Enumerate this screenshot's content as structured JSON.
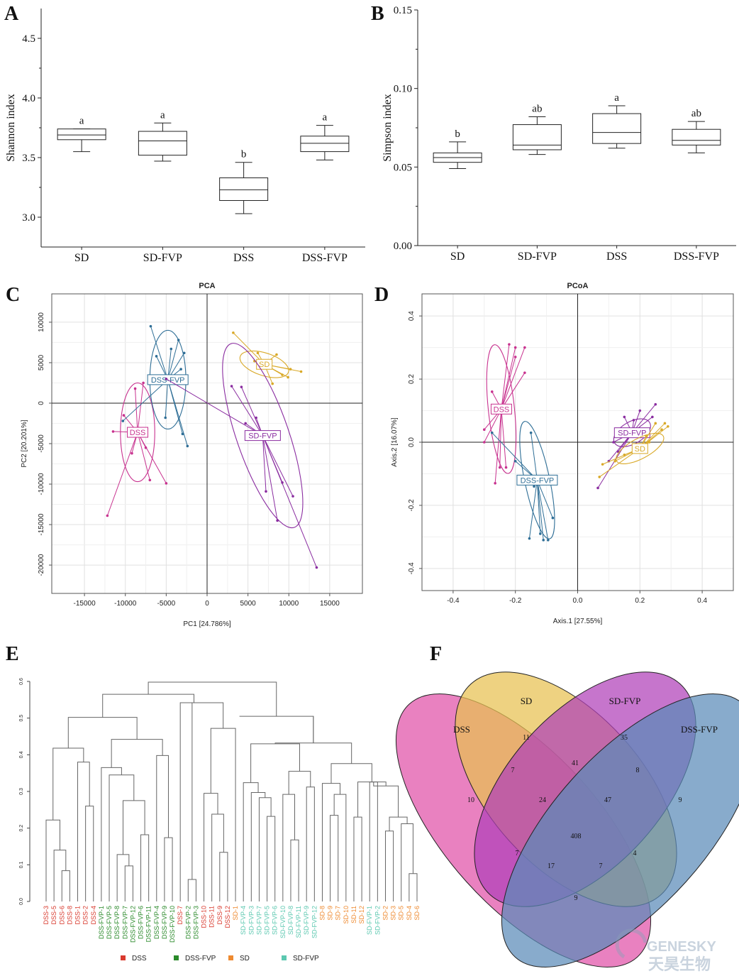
{
  "panels": {
    "A": "A",
    "B": "B",
    "C": "C",
    "D": "D",
    "E": "E",
    "F": "F"
  },
  "colors": {
    "DSS": "#c8328f",
    "DSS-FVP": "#2e6e96",
    "SD": "#d9a928",
    "SD-FVP": "#8a2ca0",
    "dendro_DSS": "#d93a2e",
    "dendro_DSS-FVP": "#2a8a2a",
    "dendro_SD": "#ee8a30",
    "dendro_SD-FVP": "#5cc8b0"
  },
  "chart_data": [
    {
      "id": "A",
      "type": "boxplot",
      "ylabel": "Shannon index",
      "ylim": [
        2.75,
        4.75
      ],
      "yticks": [
        "3.0",
        "3.5",
        "4.0",
        "4.5"
      ],
      "categories": [
        "SD",
        "SD-FVP",
        "DSS",
        "DSS-FVP"
      ],
      "boxes": [
        {
          "min": 3.55,
          "q1": 3.65,
          "median": 3.69,
          "q3": 3.74,
          "max": 3.74,
          "letter": "a"
        },
        {
          "min": 3.47,
          "q1": 3.52,
          "median": 3.64,
          "q3": 3.72,
          "max": 3.79,
          "letter": "a"
        },
        {
          "min": 3.03,
          "q1": 3.14,
          "median": 3.23,
          "q3": 3.33,
          "max": 3.46,
          "letter": "b"
        },
        {
          "min": 3.48,
          "q1": 3.55,
          "median": 3.62,
          "q3": 3.68,
          "max": 3.77,
          "letter": "a"
        }
      ]
    },
    {
      "id": "B",
      "type": "boxplot",
      "ylabel": "Simpson index",
      "ylim": [
        0.0,
        0.15
      ],
      "yticks": [
        "0.00",
        "0.05",
        "0.10",
        "0.15"
      ],
      "categories": [
        "SD",
        "SD-FVP",
        "DSS",
        "DSS-FVP"
      ],
      "boxes": [
        {
          "min": 0.049,
          "q1": 0.053,
          "median": 0.056,
          "q3": 0.059,
          "max": 0.066,
          "letter": "b"
        },
        {
          "min": 0.058,
          "q1": 0.061,
          "median": 0.064,
          "q3": 0.077,
          "max": 0.082,
          "letter": "ab"
        },
        {
          "min": 0.062,
          "q1": 0.065,
          "median": 0.072,
          "q3": 0.084,
          "max": 0.089,
          "letter": "a"
        },
        {
          "min": 0.059,
          "q1": 0.064,
          "median": 0.067,
          "q3": 0.074,
          "max": 0.079,
          "letter": "ab"
        }
      ]
    },
    {
      "id": "C",
      "type": "scatter",
      "title": "PCA",
      "xlabel": "PC1 [24.786%]",
      "ylabel": "PC2 [20.201%]",
      "xlim": [
        -19000,
        19000
      ],
      "ylim": [
        -23500,
        13500
      ],
      "xticks": [
        -15000,
        -10000,
        -5000,
        0,
        5000,
        10000,
        15000
      ],
      "yticks": [
        -20000,
        -15000,
        -10000,
        -5000,
        0,
        5000,
        10000
      ],
      "groups": [
        {
          "name": "DSS",
          "color": "#c8328f",
          "center": [
            -8500,
            -3600
          ],
          "ellipse": {
            "rx": 2100,
            "ry": 6100,
            "angle": 0
          },
          "points": [
            [
              -12200,
              -13900
            ],
            [
              -7000,
              -9500
            ],
            [
              -5000,
              -9900
            ],
            [
              -9500,
              -3500
            ],
            [
              -11500,
              -3500
            ],
            [
              -7500,
              -5500
            ],
            [
              -8800,
              1800
            ],
            [
              -10200,
              -1500
            ],
            [
              -7800,
              2500
            ],
            [
              -9200,
              -6200
            ]
          ]
        },
        {
          "name": "DSS-FVP",
          "color": "#2e6e96",
          "center": [
            -4800,
            2900
          ],
          "ellipse": {
            "rx": 2200,
            "ry": 6100,
            "angle": 0
          },
          "points": [
            [
              -6900,
              9500
            ],
            [
              -3500,
              7800
            ],
            [
              -2800,
              6200
            ],
            [
              -3200,
              4200
            ],
            [
              -3000,
              -3800
            ],
            [
              -2400,
              -5300
            ],
            [
              -5100,
              -1800
            ],
            [
              -10300,
              -2200
            ],
            [
              -6200,
              5800
            ],
            [
              -4400,
              6700
            ]
          ]
        },
        {
          "name": "SD",
          "color": "#d9a928",
          "center": [
            7000,
            4800
          ],
          "ellipse": {
            "rx": 3100,
            "ry": 1400,
            "angle": 18
          },
          "points": [
            [
              3200,
              8700
            ],
            [
              11500,
              3900
            ],
            [
              9900,
              3200
            ],
            [
              7500,
              4700
            ],
            [
              8500,
              6000
            ],
            [
              9200,
              3500
            ],
            [
              5800,
              5200
            ],
            [
              8000,
              2400
            ],
            [
              10200,
              4200
            ],
            [
              6200,
              6200
            ]
          ]
        },
        {
          "name": "SD-FVP",
          "color": "#8a2ca0",
          "center": [
            6800,
            -4000
          ],
          "ellipse": {
            "rx": 3200,
            "ry": 12000,
            "angle": -19
          },
          "points": [
            [
              13400,
              -20300
            ],
            [
              8600,
              -14500
            ],
            [
              10500,
              -11500
            ],
            [
              7200,
              -10900
            ],
            [
              -5000,
              3000
            ],
            [
              3000,
              2100
            ],
            [
              4200,
              2000
            ],
            [
              6000,
              -1800
            ],
            [
              4700,
              -2500
            ],
            [
              9200,
              -9800
            ]
          ]
        }
      ]
    },
    {
      "id": "D",
      "type": "scatter",
      "title": "PCoA",
      "xlabel": "Axis.1  [27.55%]",
      "ylabel": "Axis.2  [16.07%]",
      "xlim": [
        -0.5,
        0.5
      ],
      "ylim": [
        -0.47,
        0.47
      ],
      "xticks": [
        -0.4,
        -0.2,
        0.0,
        0.2,
        0.4
      ],
      "xtick_labels": [
        "-0.4",
        "-0.2",
        "0.0",
        "0.2",
        "0.4"
      ],
      "yticks": [
        -0.4,
        -0.2,
        0.0,
        0.2,
        0.4
      ],
      "ytick_labels": [
        "-0.4",
        "-0.2",
        "0.0",
        "0.2",
        "0.4"
      ],
      "groups": [
        {
          "name": "DSS",
          "color": "#c8328f",
          "center": [
            -0.245,
            0.105
          ],
          "ellipse": {
            "rx": 0.042,
            "ry": 0.205,
            "angle": -6
          },
          "points": [
            [
              -0.22,
              0.31
            ],
            [
              -0.2,
              0.3
            ],
            [
              -0.17,
              0.3
            ],
            [
              -0.275,
              0.16
            ],
            [
              -0.17,
              0.22
            ],
            [
              -0.3,
              0.04
            ],
            [
              -0.25,
              -0.08
            ],
            [
              -0.265,
              -0.13
            ],
            [
              -0.23,
              -0.08
            ],
            [
              -0.3,
              0.0
            ],
            [
              -0.2,
              0.27
            ]
          ]
        },
        {
          "name": "DSS-FVP",
          "color": "#2e6e96",
          "center": [
            -0.13,
            -0.12
          ],
          "ellipse": {
            "rx": 0.04,
            "ry": 0.19,
            "angle": -12
          },
          "points": [
            [
              -0.155,
              -0.305
            ],
            [
              -0.11,
              -0.31
            ],
            [
              -0.095,
              -0.31
            ],
            [
              -0.08,
              -0.24
            ],
            [
              -0.12,
              -0.29
            ],
            [
              -0.14,
              -0.14
            ],
            [
              -0.185,
              -0.11
            ],
            [
              -0.2,
              -0.06
            ],
            [
              -0.275,
              0.03
            ],
            [
              -0.15,
              0.03
            ]
          ]
        },
        {
          "name": "SD-FVP",
          "color": "#8a2ca0",
          "center": [
            0.175,
            0.03
          ],
          "ellipse": {
            "rx": 0.065,
            "ry": 0.035,
            "angle": -30
          },
          "points": [
            [
              0.065,
              -0.145
            ],
            [
              0.25,
              0.12
            ],
            [
              0.2,
              0.1
            ],
            [
              0.15,
              0.08
            ],
            [
              0.24,
              0.08
            ],
            [
              0.115,
              0.0
            ],
            [
              0.13,
              -0.03
            ],
            [
              0.2,
              0.04
            ],
            [
              0.18,
              0.07
            ],
            [
              0.1,
              -0.06
            ]
          ]
        },
        {
          "name": "SD",
          "color": "#d9a928",
          "center": [
            0.2,
            -0.02
          ],
          "ellipse": {
            "rx": 0.085,
            "ry": 0.032,
            "angle": -28
          },
          "points": [
            [
              0.07,
              -0.11
            ],
            [
              0.08,
              -0.07
            ],
            [
              0.28,
              0.06
            ],
            [
              0.29,
              0.05
            ],
            [
              0.25,
              0.06
            ],
            [
              0.27,
              0.04
            ],
            [
              0.23,
              0.0
            ],
            [
              0.15,
              -0.04
            ],
            [
              0.12,
              -0.06
            ],
            [
              0.22,
              0.02
            ]
          ]
        }
      ]
    },
    {
      "id": "E",
      "type": "dendrogram",
      "ylim": [
        0.0,
        0.6
      ],
      "yticks": [
        "0.0",
        "0.1",
        "0.2",
        "0.3",
        "0.4",
        "0.5",
        "0.6"
      ],
      "leaves": [
        {
          "label": "DSS-3",
          "group": "DSS"
        },
        {
          "label": "DSS-5",
          "group": "DSS"
        },
        {
          "label": "DSS-6",
          "group": "DSS"
        },
        {
          "label": "DSS-8",
          "group": "DSS"
        },
        {
          "label": "DSS-1",
          "group": "DSS"
        },
        {
          "label": "DSS-2",
          "group": "DSS"
        },
        {
          "label": "DSS-4",
          "group": "DSS"
        },
        {
          "label": "DSS-FVP-1",
          "group": "DSS-FVP"
        },
        {
          "label": "DSS-FVP-5",
          "group": "DSS-FVP"
        },
        {
          "label": "DSS-FVP-8",
          "group": "DSS-FVP"
        },
        {
          "label": "DSS-FVP-7",
          "group": "DSS-FVP"
        },
        {
          "label": "DSS-FVP-12",
          "group": "DSS-FVP"
        },
        {
          "label": "DSS-FVP-6",
          "group": "DSS-FVP"
        },
        {
          "label": "DSS-FVP-11",
          "group": "DSS-FVP"
        },
        {
          "label": "DSS-FVP-4",
          "group": "DSS-FVP"
        },
        {
          "label": "DSS-FVP-9",
          "group": "DSS-FVP"
        },
        {
          "label": "DSS-FVP-10",
          "group": "DSS-FVP"
        },
        {
          "label": "DSS-7",
          "group": "DSS"
        },
        {
          "label": "DSS-FVP-2",
          "group": "DSS-FVP"
        },
        {
          "label": "DSS-FVP-3",
          "group": "DSS-FVP"
        },
        {
          "label": "DSS-10",
          "group": "DSS"
        },
        {
          "label": "DSS-11",
          "group": "DSS"
        },
        {
          "label": "DSS-9",
          "group": "DSS"
        },
        {
          "label": "DSS-12",
          "group": "DSS"
        },
        {
          "label": "SD-1",
          "group": "SD"
        },
        {
          "label": "SD-FVP-4",
          "group": "SD-FVP"
        },
        {
          "label": "SD-FVP-3",
          "group": "SD-FVP"
        },
        {
          "label": "SD-FVP-7",
          "group": "SD-FVP"
        },
        {
          "label": "SD-FVP-5",
          "group": "SD-FVP"
        },
        {
          "label": "SD-FVP-6",
          "group": "SD-FVP"
        },
        {
          "label": "SD-FVP-10",
          "group": "SD-FVP"
        },
        {
          "label": "SD-FVP-8",
          "group": "SD-FVP"
        },
        {
          "label": "SD-FVP-11",
          "group": "SD-FVP"
        },
        {
          "label": "SD-FVP-9",
          "group": "SD-FVP"
        },
        {
          "label": "SD-FVP-12",
          "group": "SD-FVP"
        },
        {
          "label": "SD-8",
          "group": "SD"
        },
        {
          "label": "SD-9",
          "group": "SD"
        },
        {
          "label": "SD-7",
          "group": "SD"
        },
        {
          "label": "SD-10",
          "group": "SD"
        },
        {
          "label": "SD-11",
          "group": "SD"
        },
        {
          "label": "SD-12",
          "group": "SD"
        },
        {
          "label": "SD-FVP-1",
          "group": "SD-FVP"
        },
        {
          "label": "SD-FVP-2",
          "group": "SD-FVP"
        },
        {
          "label": "SD-2",
          "group": "SD"
        },
        {
          "label": "SD-3",
          "group": "SD"
        },
        {
          "label": "SD-5",
          "group": "SD"
        },
        {
          "label": "SD-4",
          "group": "SD"
        },
        {
          "label": "SD-6",
          "group": "SD"
        }
      ],
      "legend": [
        {
          "label": "DSS",
          "group": "DSS"
        },
        {
          "label": "DSS-FVP",
          "group": "DSS-FVP"
        },
        {
          "label": "SD",
          "group": "SD"
        },
        {
          "label": "SD-FVP",
          "group": "SD-FVP"
        }
      ]
    },
    {
      "id": "F",
      "type": "venn",
      "sets": [
        {
          "name": "DSS",
          "color": "#e050a8"
        },
        {
          "name": "SD",
          "color": "#e8c050"
        },
        {
          "name": "SD-FVP",
          "color": "#b040b8"
        },
        {
          "name": "DSS-FVP",
          "color": "#5a8ab8"
        }
      ],
      "regions": [
        {
          "sets": [
            "DSS"
          ],
          "value": 10
        },
        {
          "sets": [
            "SD"
          ],
          "value": 11
        },
        {
          "sets": [
            "SD-FVP"
          ],
          "value": 35
        },
        {
          "sets": [
            "DSS-FVP"
          ],
          "value": 9
        },
        {
          "sets": [
            "DSS",
            "SD"
          ],
          "value": 7
        },
        {
          "sets": [
            "SD",
            "SD-FVP"
          ],
          "value": 41
        },
        {
          "sets": [
            "SD-FVP",
            "DSS-FVP"
          ],
          "value": 8
        },
        {
          "sets": [
            "DSS",
            "SD",
            "SD-FVP"
          ],
          "value": 24
        },
        {
          "sets": [
            "SD",
            "SD-FVP",
            "DSS-FVP"
          ],
          "value": 47
        },
        {
          "sets": [
            "DSS",
            "SD",
            "SD-FVP",
            "DSS-FVP"
          ],
          "value": 408
        },
        {
          "sets": [
            "DSS",
            "SD-FVP"
          ],
          "value": 7
        },
        {
          "sets": [
            "SD",
            "DSS-FVP"
          ],
          "value": 4
        },
        {
          "sets": [
            "DSS",
            "SD-FVP",
            "DSS-FVP"
          ],
          "value": 17
        },
        {
          "sets": [
            "DSS",
            "SD",
            "DSS-FVP"
          ],
          "value": 7
        },
        {
          "sets": [
            "DSS",
            "DSS-FVP"
          ],
          "value": 9
        }
      ]
    }
  ],
  "watermark": {
    "line1": "GENESKY",
    "line2": "天昊生物"
  }
}
